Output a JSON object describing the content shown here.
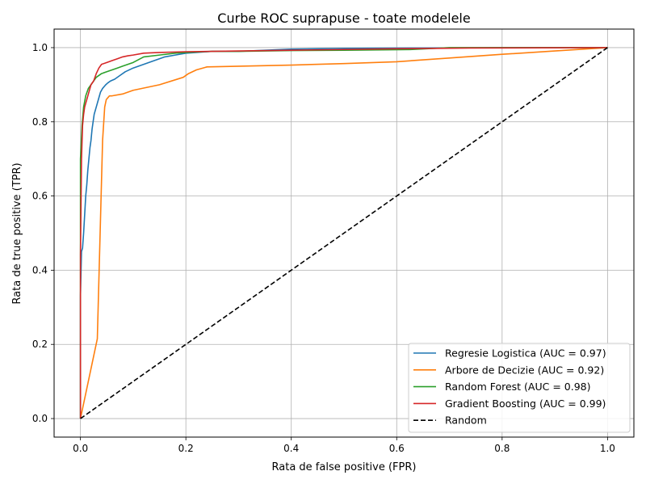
{
  "chart_data": {
    "type": "line",
    "title": "Curbe ROC suprapuse - toate modelele",
    "xlabel": "Rata de false positive (FPR)",
    "ylabel": "Rata de true positive (TPR)",
    "xlim": [
      -0.05,
      1.05
    ],
    "ylim": [
      -0.05,
      1.05
    ],
    "xticks": [
      "0.0",
      "0.2",
      "0.4",
      "0.6",
      "0.8",
      "1.0"
    ],
    "yticks": [
      "0.0",
      "0.2",
      "0.4",
      "0.6",
      "0.8",
      "1.0"
    ],
    "grid": true,
    "legend_position": "bottom-right",
    "series": [
      {
        "name": "Regresie Logistica (AUC = 0.97)",
        "color": "#1f77b4",
        "style": "solid",
        "x": [
          0.0,
          0.0,
          0.002,
          0.004,
          0.006,
          0.008,
          0.01,
          0.012,
          0.014,
          0.016,
          0.018,
          0.02,
          0.022,
          0.024,
          0.026,
          0.028,
          0.03,
          0.032,
          0.034,
          0.036,
          0.038,
          0.04,
          0.042,
          0.045,
          0.048,
          0.052,
          0.057,
          0.065,
          0.075,
          0.085,
          0.1,
          0.12,
          0.14,
          0.16,
          0.18,
          0.2,
          0.22,
          0.25,
          0.3,
          0.35,
          0.4,
          0.5,
          0.65,
          0.8,
          1.0
        ],
        "y": [
          0.0,
          0.33,
          0.45,
          0.46,
          0.5,
          0.55,
          0.6,
          0.63,
          0.67,
          0.7,
          0.73,
          0.75,
          0.78,
          0.8,
          0.82,
          0.83,
          0.84,
          0.85,
          0.86,
          0.87,
          0.88,
          0.885,
          0.89,
          0.895,
          0.9,
          0.905,
          0.91,
          0.915,
          0.925,
          0.935,
          0.945,
          0.955,
          0.965,
          0.975,
          0.98,
          0.985,
          0.987,
          0.99,
          0.99,
          0.993,
          0.996,
          0.998,
          0.999,
          1.0,
          1.0
        ]
      },
      {
        "name": "Arbore de Decizie (AUC = 0.92)",
        "color": "#ff7f0e",
        "style": "solid",
        "x": [
          0.0,
          0.032,
          0.042,
          0.046,
          0.049,
          0.052,
          0.055,
          0.06,
          0.08,
          0.1,
          0.15,
          0.195,
          0.205,
          0.22,
          0.24,
          0.4,
          0.5,
          0.6,
          0.7,
          0.8,
          0.9,
          1.0
        ],
        "y": [
          0.0,
          0.215,
          0.75,
          0.84,
          0.86,
          0.865,
          0.87,
          0.87,
          0.875,
          0.885,
          0.9,
          0.92,
          0.93,
          0.94,
          0.948,
          0.953,
          0.957,
          0.962,
          0.972,
          0.982,
          0.991,
          1.0
        ]
      },
      {
        "name": "Random Forest (AUC = 0.98)",
        "color": "#2ca02c",
        "style": "solid",
        "x": [
          0.0,
          0.0,
          0.003,
          0.006,
          0.01,
          0.015,
          0.02,
          0.025,
          0.03,
          0.04,
          0.05,
          0.06,
          0.07,
          0.08,
          0.09,
          0.1,
          0.12,
          0.15,
          0.18,
          0.2,
          0.25,
          0.3,
          0.4,
          0.5,
          0.63,
          0.7,
          0.8,
          1.0
        ],
        "y": [
          0.0,
          0.7,
          0.79,
          0.84,
          0.87,
          0.89,
          0.9,
          0.91,
          0.92,
          0.93,
          0.935,
          0.94,
          0.945,
          0.95,
          0.955,
          0.96,
          0.975,
          0.98,
          0.985,
          0.987,
          0.99,
          0.99,
          0.992,
          0.993,
          0.995,
          1.0,
          1.0,
          1.0
        ]
      },
      {
        "name": "Gradient Boosting (AUC = 0.99)",
        "color": "#d62728",
        "style": "solid",
        "x": [
          0.0,
          0.0,
          0.002,
          0.004,
          0.006,
          0.008,
          0.012,
          0.016,
          0.02,
          0.025,
          0.03,
          0.035,
          0.04,
          0.05,
          0.06,
          0.07,
          0.08,
          0.09,
          0.1,
          0.12,
          0.15,
          0.2,
          0.3,
          0.4,
          0.5,
          0.6,
          0.74,
          1.0
        ],
        "y": [
          0.0,
          0.44,
          0.7,
          0.79,
          0.82,
          0.84,
          0.86,
          0.88,
          0.9,
          0.91,
          0.93,
          0.945,
          0.955,
          0.96,
          0.965,
          0.97,
          0.975,
          0.978,
          0.98,
          0.985,
          0.987,
          0.989,
          0.991,
          0.993,
          0.995,
          0.997,
          0.999,
          1.0
        ]
      },
      {
        "name": "Random",
        "color": "#000000",
        "style": "dashed",
        "x": [
          0.0,
          1.0
        ],
        "y": [
          0.0,
          1.0
        ]
      }
    ]
  }
}
